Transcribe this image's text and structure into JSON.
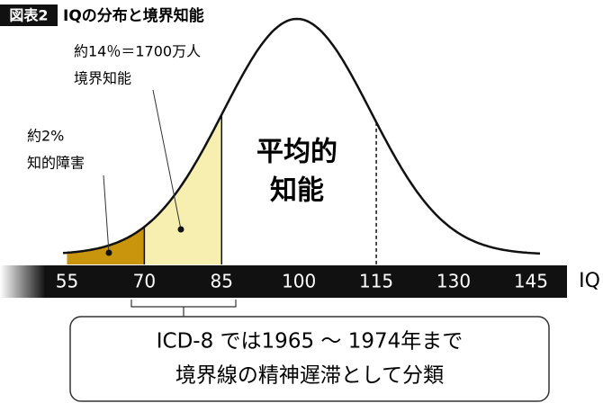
{
  "chart_data": {
    "type": "normal-curve",
    "title_tag": "図表2",
    "title": "IQの分布と境界知能",
    "xlim": [
      42,
      152
    ],
    "xticks": [
      55,
      70,
      85,
      100,
      115,
      130,
      145
    ],
    "xlabel": "IQ",
    "regions": [
      {
        "x": [
          55,
          70
        ],
        "color": "#c9950c"
      },
      {
        "x": [
          70,
          85
        ],
        "color": "#f6efb0"
      }
    ],
    "dashed_lines": [
      115
    ],
    "callouts": [
      {
        "lines": [
          "約14％＝1700万人",
          "境界知能"
        ]
      },
      {
        "lines": [
          "約2%",
          "知的障害"
        ]
      }
    ],
    "center_label": [
      "平均的",
      "知能"
    ],
    "note": [
      "ICD-8 では1965 〜 1974年まで",
      "境界線の精神遅滞として分類"
    ]
  }
}
